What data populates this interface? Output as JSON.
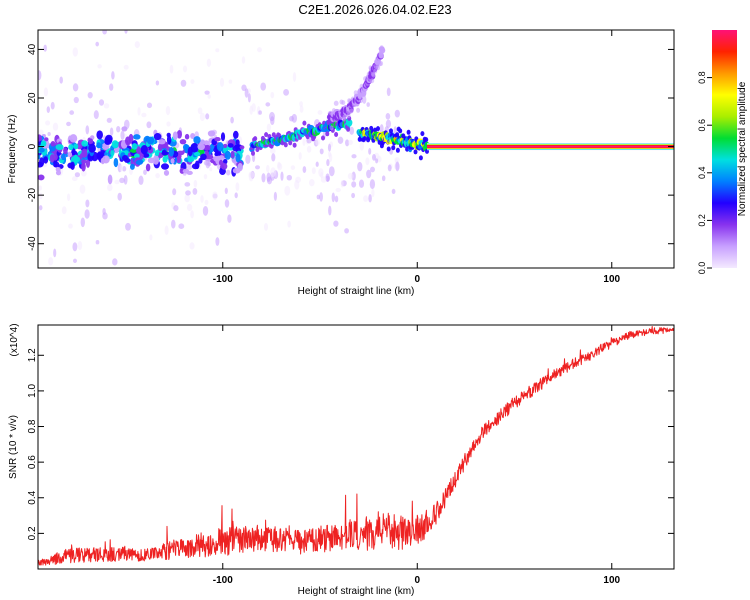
{
  "figure_title": "C2E1.2026.026.04.02.E23",
  "colors": {
    "background": "#ffffff",
    "axis": "#000000",
    "snr_line": "#ee2222"
  },
  "chart_data": [
    {
      "id": "spectrogram",
      "type": "heatmap",
      "title": "C2E1.2026.026.04.02.E23",
      "xlabel": "Height of straight line (km)",
      "ylabel": "Frequency (Hz)",
      "xlim": [
        -195,
        132
      ],
      "ylim": [
        -50,
        48
      ],
      "xticks": [
        {
          "value": -100,
          "label": "-100"
        },
        {
          "value": 0,
          "label": "0"
        },
        {
          "value": 100,
          "label": "100"
        }
      ],
      "yticks": [
        {
          "value": -40,
          "label": "-40"
        },
        {
          "value": -20,
          "label": "-20"
        },
        {
          "value": 0,
          "label": "0"
        },
        {
          "value": 20,
          "label": "20"
        },
        {
          "value": 40,
          "label": "40"
        }
      ],
      "colorbar": {
        "label": "Normalized spectral amplitude",
        "range": [
          0,
          1
        ],
        "ticks": [
          {
            "value": 0.0,
            "label": "0.0"
          },
          {
            "value": 0.2,
            "label": "0.2"
          },
          {
            "value": 0.4,
            "label": "0.4"
          },
          {
            "value": 0.6,
            "label": "0.6"
          },
          {
            "value": 0.8,
            "label": "0.8"
          }
        ],
        "colormap": [
          "#f4eaff",
          "#c8a0ff",
          "#8833ee",
          "#2200ff",
          "#0080ff",
          "#00e0e0",
          "#00dd33",
          "#aaee00",
          "#ffff00",
          "#ff9900",
          "#ff2200",
          "#ff1177"
        ]
      },
      "features": [
        {
          "name": "scattered-noise",
          "x": [
            -195,
            -10
          ],
          "freq_center": 0,
          "freq_spread": 45,
          "amplitude": 0.05
        },
        {
          "name": "broadband-cluster",
          "x": [
            -195,
            -90
          ],
          "freq_center": -2,
          "freq_spread": 6,
          "amplitude": 0.35
        },
        {
          "name": "rising-trace-a",
          "x": [
            -85,
            -35
          ],
          "freq_start": 0,
          "freq_end": 10,
          "amplitude": 0.45
        },
        {
          "name": "rising-trace-b",
          "x": [
            -45,
            -18
          ],
          "freq_start": 12,
          "freq_end": 40,
          "amplitude": 0.15
        },
        {
          "name": "settling-trace",
          "x": [
            -30,
            5
          ],
          "freq_start": 6,
          "freq_end": 0,
          "amplitude": 0.6
        },
        {
          "name": "steady-tone",
          "x": [
            5,
            132
          ],
          "freq": 0,
          "amplitude": 1.0
        }
      ]
    },
    {
      "id": "snr",
      "type": "line",
      "xlabel": "Height of straight line (km)",
      "ylabel": "SNR (10 * v/v)",
      "y_multiplier": "(x10^4)",
      "xlim": [
        -195,
        132
      ],
      "ylim": [
        0,
        13700
      ],
      "xticks": [
        {
          "value": -100,
          "label": "-100"
        },
        {
          "value": 0,
          "label": "0"
        },
        {
          "value": 100,
          "label": "100"
        }
      ],
      "yticks": [
        {
          "value": 2000,
          "label": "0.2"
        },
        {
          "value": 4000,
          "label": "0.4"
        },
        {
          "value": 6000,
          "label": "0.6"
        },
        {
          "value": 8000,
          "label": "0.8"
        },
        {
          "value": 10000,
          "label": "1.0"
        },
        {
          "value": 12000,
          "label": "1.2"
        }
      ],
      "series": [
        {
          "name": "SNR",
          "x": [
            -195,
            -180,
            -160,
            -140,
            -120,
            -100,
            -80,
            -60,
            -40,
            -20,
            -5,
            5,
            10,
            15,
            20,
            25,
            30,
            35,
            40,
            50,
            60,
            70,
            80,
            90,
            100,
            110,
            120,
            132
          ],
          "y": [
            300,
            600,
            700,
            700,
            1000,
            1300,
            1500,
            1300,
            1600,
            1800,
            1800,
            2200,
            3000,
            4000,
            5000,
            6000,
            7000,
            7700,
            8200,
            9200,
            10000,
            10800,
            11400,
            12000,
            12600,
            13100,
            13300,
            13350
          ],
          "noise": [
            300,
            900,
            800,
            800,
            1200,
            1600,
            1500,
            1400,
            1600,
            2200,
            2000,
            1400,
            1200,
            1100,
            1000,
            900,
            800,
            800,
            800,
            800,
            700,
            700,
            600,
            600,
            500,
            400,
            400,
            300
          ]
        }
      ]
    }
  ]
}
